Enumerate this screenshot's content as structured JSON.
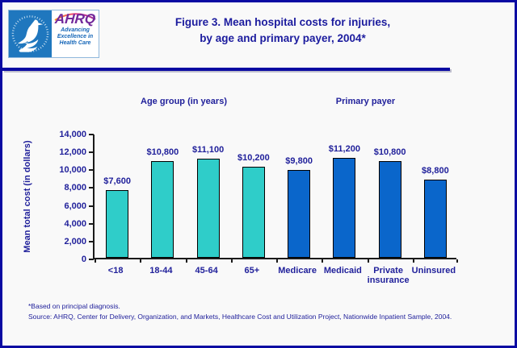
{
  "header": {
    "title_line1": "Figure 3. Mean hospital costs for injuries,",
    "title_line2": "by age and primary payer, 2004*",
    "logo": {
      "ahrq_acronym": "AHRQ",
      "tagline_line1": "Advancing",
      "tagline_line2": "Excellence in",
      "tagline_line3": "Health Care"
    }
  },
  "chart_data": {
    "type": "bar",
    "title": "Figure 3. Mean hospital costs for injuries, by age and primary payer, 2004*",
    "xlabel": "",
    "ylabel": "Mean total cost (in dollars)",
    "ylim": [
      0,
      14000
    ],
    "ytick_step": 2000,
    "ytick_labels_top_to_bottom": [
      "14,000",
      "12,000",
      "10,000",
      "8,000",
      "6,000",
      "4,000",
      "2,000",
      "0"
    ],
    "grid": false,
    "legend_position": "none",
    "groups": [
      {
        "label": "Age group (in years)",
        "bar_color": "#2FCDC9",
        "categories": [
          "<18",
          "18-44",
          "45-64",
          "65+"
        ],
        "values": [
          7600,
          10800,
          11100,
          10200
        ],
        "value_labels": [
          "$7,600",
          "$10,800",
          "$11,100",
          "$10,200"
        ]
      },
      {
        "label": "Primary payer",
        "bar_color": "#0A66CB",
        "categories": [
          "Medicare",
          "Medicaid",
          "Private insurance",
          "Uninsured"
        ],
        "values": [
          9800,
          11200,
          10800,
          8800
        ],
        "value_labels": [
          "$9,800",
          "$11,200",
          "$10,800",
          "$8,800"
        ]
      }
    ]
  },
  "footnotes": {
    "note": "*Based on principal diagnosis.",
    "source": "Source: AHRQ, Center for Delivery, Organization, and Markets, Healthcare Cost and Utilization Project, Nationwide Inpatient Sample, 2004."
  },
  "colors": {
    "frame_border": "#0A0AA2",
    "text_navy": "#21219B",
    "age_bar_teal": "#2FCDC9",
    "payer_bar_blue": "#0A66CB",
    "hhs_logo_blue": "#1F77BE",
    "ahrq_purple": "#72299B",
    "tagline_blue": "#1566B8",
    "background": "#F9F9F9"
  }
}
